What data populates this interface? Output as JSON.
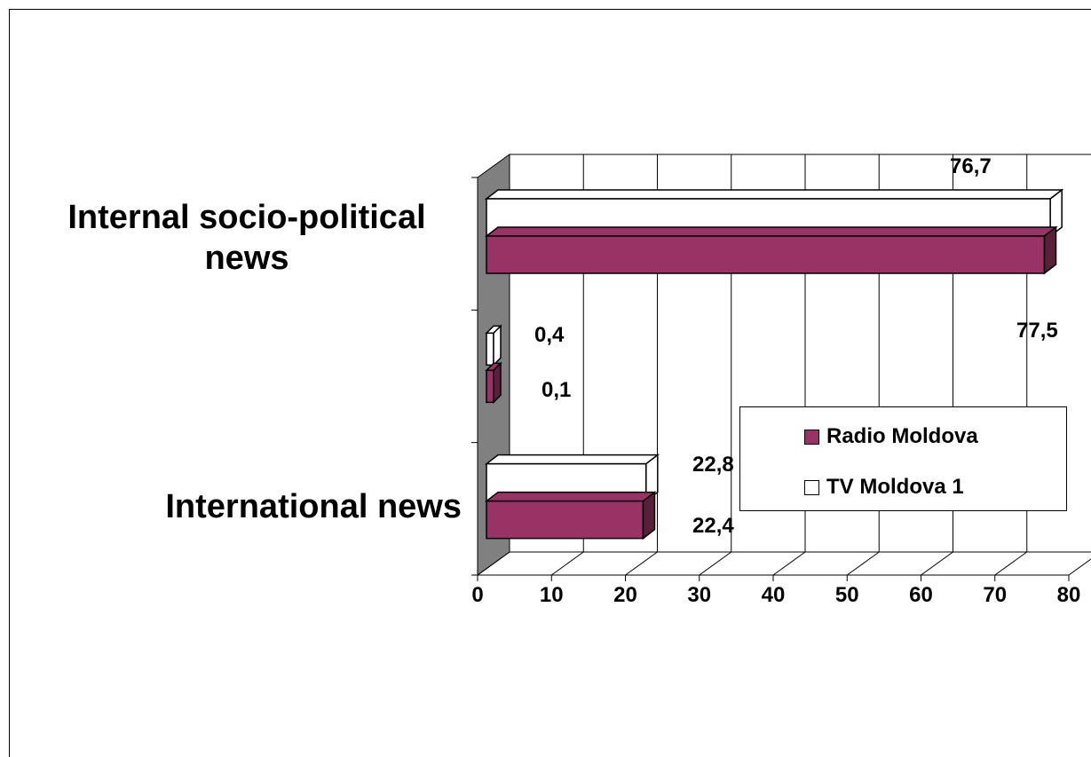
{
  "chart_data": {
    "type": "bar",
    "orientation": "horizontal",
    "title": "",
    "xlabel": "",
    "ylabel": "",
    "categories": [
      "Internal socio-political news",
      "",
      "International news"
    ],
    "category_labels": [
      "Internal socio-political\nnews",
      "International news"
    ],
    "xlim": [
      0,
      80
    ],
    "x_ticks": [
      "0",
      "10",
      "20",
      "30",
      "40",
      "50",
      "60",
      "70",
      "80"
    ],
    "grid": true,
    "legend_position": "right",
    "series": [
      {
        "name": "TV Moldova 1",
        "values": [
          77.5,
          0.4,
          22.8
        ],
        "labels": [
          "77,5",
          "0,4",
          "22,8"
        ],
        "color": "#ffffff"
      },
      {
        "name": "Radio Moldova",
        "values": [
          76.7,
          0.1,
          22.4
        ],
        "labels": [
          "76,7",
          "0,1",
          "22,4"
        ],
        "color": "#993366"
      }
    ]
  },
  "colors": {
    "wall": "#808080",
    "floor_grid": "#000000",
    "radio_side": "#5a1f3b",
    "tv_side": "#ffffff"
  }
}
